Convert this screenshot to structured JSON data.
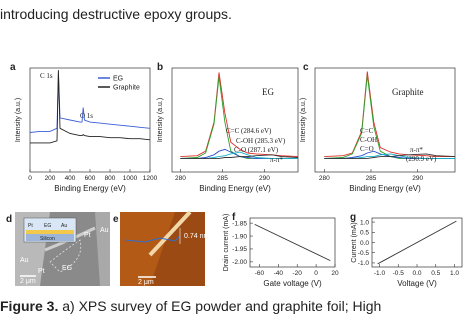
{
  "text": "introducing destructive epoxy groups.",
  "chart_data": [
    {
      "type": "line",
      "label": "a",
      "xlabel": "Binding Energy (eV)",
      "ylabel": "Intensity (a.u.)",
      "x": [
        0,
        100,
        200,
        270,
        284,
        300,
        400,
        500,
        520,
        532,
        545,
        600,
        700,
        800,
        900,
        1000,
        1100,
        1200
      ],
      "xlim": [
        0,
        1200
      ],
      "xticks": [
        0,
        200,
        400,
        600,
        800,
        1000,
        1200
      ],
      "ylim": [
        0,
        100
      ],
      "series": [
        {
          "name": "EG",
          "color": "#3b5fd6",
          "values": [
            38,
            39,
            39,
            42,
            95,
            52,
            50,
            48,
            48,
            62,
            50,
            48,
            47,
            46,
            45,
            44,
            43,
            42
          ]
        },
        {
          "name": "Graphite",
          "color": "#222222",
          "values": [
            28,
            28,
            28,
            30,
            98,
            42,
            37,
            35,
            35,
            36,
            35,
            34,
            34,
            33,
            33,
            32,
            32,
            31
          ]
        }
      ],
      "annotations": [
        "C 1s",
        "O 1s"
      ]
    },
    {
      "type": "line",
      "label": "b",
      "xlabel": "Binding Energy (eV)",
      "ylabel": "Intensity (a.u.)",
      "x": [
        280,
        282,
        283,
        284,
        284.6,
        285.3,
        286,
        287.1,
        288,
        289,
        290.9,
        292,
        294
      ],
      "xlim": [
        279,
        294
      ],
      "xticks": [
        280,
        285,
        290
      ],
      "ylim": [
        -15,
        100
      ],
      "series": [
        {
          "color": "#e0302a",
          "values": [
            2,
            3,
            8,
            40,
            95,
            50,
            18,
            10,
            6,
            5,
            4,
            3,
            2
          ]
        },
        {
          "color": "#2ca02c",
          "values": [
            0,
            1,
            6,
            38,
            90,
            40,
            8,
            2,
            0,
            0,
            0,
            0,
            0
          ]
        },
        {
          "color": "#2b4fd0",
          "values": [
            0,
            0,
            1,
            4,
            8,
            10,
            7,
            2,
            1,
            0,
            0,
            0,
            0
          ]
        },
        {
          "color": "#17b3c9",
          "values": [
            0,
            0,
            0,
            1,
            2,
            3,
            5,
            7,
            4,
            1,
            0,
            0,
            0
          ]
        },
        {
          "color": "#333333",
          "values": [
            0,
            0,
            0,
            0,
            0,
            1,
            1,
            2,
            2,
            3,
            4,
            2,
            1
          ]
        }
      ],
      "annotations": [
        "EG",
        "C=C (284.6 eV)",
        "C-OH (285.3 eV)",
        "C-O (287.1 eV)",
        "π-π*"
      ]
    },
    {
      "type": "line",
      "label": "c",
      "xlabel": "Binding Energy (eV)",
      "ylabel": "Intensity (a.u.)",
      "x": [
        280,
        282,
        283,
        284,
        284.6,
        285.3,
        286,
        287.1,
        288,
        289,
        290.9,
        292,
        294
      ],
      "xlim": [
        279,
        294
      ],
      "xticks": [
        280,
        285,
        290
      ],
      "ylim": [
        -15,
        100
      ],
      "series": [
        {
          "color": "#e0302a",
          "values": [
            2,
            3,
            6,
            30,
            96,
            40,
            12,
            7,
            5,
            4,
            3,
            2,
            2
          ]
        },
        {
          "color": "#2ca02c",
          "values": [
            0,
            1,
            5,
            28,
            92,
            35,
            8,
            2,
            0,
            0,
            0,
            0,
            0
          ]
        },
        {
          "color": "#2b4fd0",
          "values": [
            0,
            0,
            1,
            3,
            6,
            8,
            5,
            2,
            1,
            0,
            0,
            0,
            0
          ]
        },
        {
          "color": "#17b3c9",
          "values": [
            0,
            0,
            0,
            1,
            2,
            2,
            4,
            5,
            3,
            1,
            0,
            0,
            0
          ]
        },
        {
          "color": "#333333",
          "values": [
            0,
            0,
            0,
            0,
            0,
            1,
            2,
            2,
            3,
            4,
            5,
            3,
            2
          ]
        }
      ],
      "annotations": [
        "Graphite",
        "C=C",
        "C-OH",
        "C=O",
        "π-π*",
        "(290.9 eV)"
      ]
    },
    {
      "type": "line",
      "label": "f",
      "xlabel": "Gate voltage (V)",
      "ylabel": "Drain current (mA)",
      "x": [
        -65,
        15
      ],
      "xlim": [
        -70,
        20
      ],
      "xticks": [
        -60,
        -40,
        -20,
        0,
        20
      ],
      "ylim": [
        -2.02,
        -1.83
      ],
      "yticks": [
        -1.85,
        {
          "value": -1.9,
          "label": "-1.90"
        },
        -1.95,
        {
          "value": -2,
          "label": "-2.00"
        }
      ],
      "series": [
        {
          "color": "#333333",
          "values": [
            -1.855,
            -1.995
          ]
        }
      ]
    },
    {
      "type": "line",
      "label": "g",
      "xlabel": "Voltage (V)",
      "ylabel": "Current (mA)",
      "x": [
        -1.05,
        1.05
      ],
      "xlim": [
        -1.2,
        1.2
      ],
      "xticks": [
        {
          "value": -1,
          "label": "-1.0"
        },
        -0.5,
        {
          "value": 0,
          "label": "0.0"
        },
        0.5,
        {
          "value": 1,
          "label": "1.0"
        }
      ],
      "ylim": [
        -1.2,
        1.2
      ],
      "yticks": [
        {
          "value": -1,
          "label": "-1.0"
        },
        -0.5,
        {
          "value": 0,
          "label": "0.0"
        },
        0.5,
        {
          "value": 1,
          "label": "1.0"
        }
      ],
      "series": [
        {
          "color": "#333333",
          "values": [
            -1.05,
            1.05
          ]
        }
      ]
    }
  ],
  "images": [
    {
      "label": "d",
      "texts": [
        "Pt",
        "EG",
        "Au",
        "Silicon",
        "Au",
        "Pt",
        "Pt",
        "Au",
        "EG",
        "2 μm"
      ]
    },
    {
      "label": "e",
      "texts": [
        "0.74 nm",
        "2 μm"
      ]
    }
  ],
  "caption": {
    "label": "Figure 3.",
    "text": " a) XPS survey of EG powder and graphite foil; High"
  }
}
